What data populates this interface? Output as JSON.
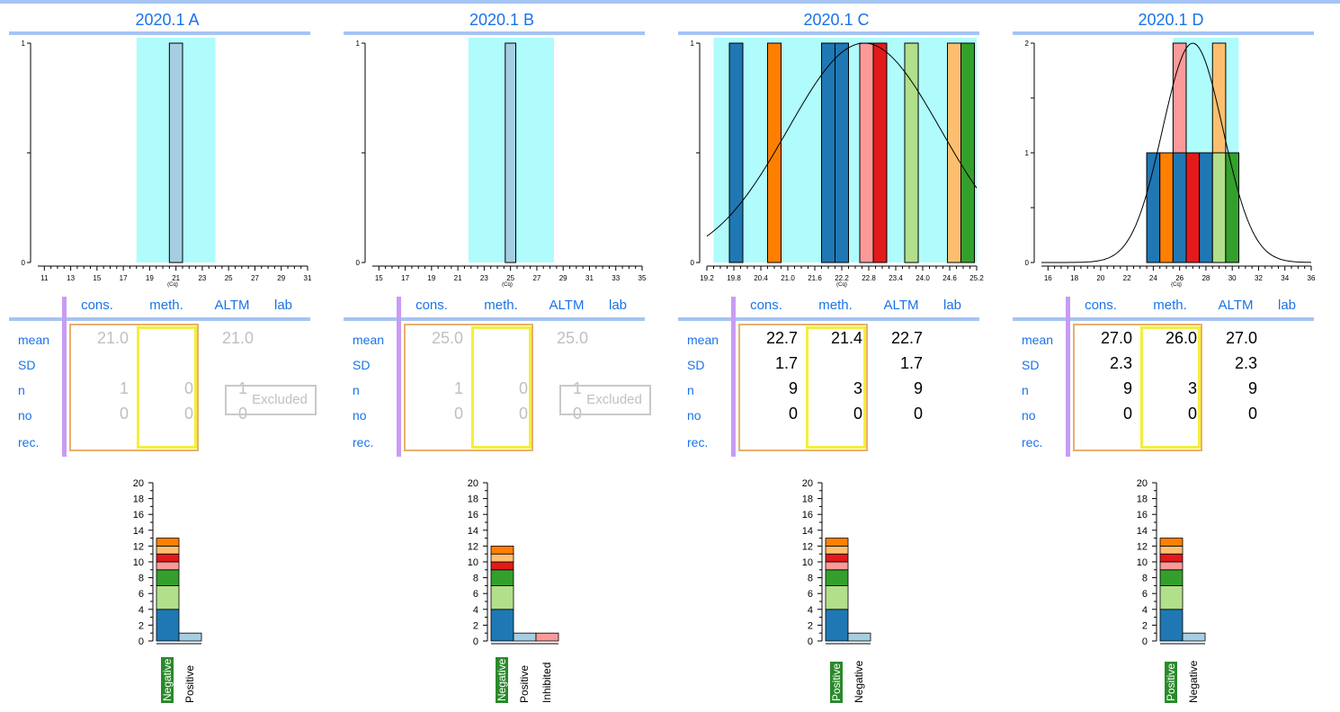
{
  "colors": {
    "accent": "#1a73e8",
    "band": "#b0fbfb",
    "title_line": "#a6c4f3",
    "separator": "#c79cf5",
    "cons_box": "#e8b070",
    "meth_box": "#f4ee3a",
    "highlight_label": "#2a8a2a"
  },
  "table_labels": {
    "columns": [
      "cons.",
      "meth.",
      "ALTM",
      "lab"
    ],
    "rows": [
      "mean",
      "SD",
      "n",
      "no",
      "rec."
    ],
    "excluded": "Excluded"
  },
  "panels": [
    {
      "title": "2020.1 A",
      "stats_style": "grey",
      "stats": {
        "mean": [
          "21.0",
          "",
          "21.0",
          ""
        ],
        "sd": [
          "",
          "",
          "",
          ""
        ],
        "n": [
          "1",
          "0",
          "1",
          ""
        ],
        "no": [
          "0",
          "0",
          "0",
          ""
        ]
      },
      "excluded": true
    },
    {
      "title": "2020.1 B",
      "stats_style": "grey",
      "stats": {
        "mean": [
          "25.0",
          "",
          "25.0",
          ""
        ],
        "sd": [
          "",
          "",
          "",
          ""
        ],
        "n": [
          "1",
          "0",
          "1",
          ""
        ],
        "no": [
          "0",
          "0",
          "0",
          ""
        ]
      },
      "excluded": true
    },
    {
      "title": "2020.1 C",
      "stats_style": "black",
      "stats": {
        "mean": [
          "22.7",
          "21.4",
          "22.7",
          ""
        ],
        "sd": [
          "1.7",
          "",
          "1.7",
          ""
        ],
        "n": [
          "9",
          "3",
          "9",
          ""
        ],
        "no": [
          "0",
          "0",
          "0",
          ""
        ]
      },
      "excluded": false
    },
    {
      "title": "2020.1 D",
      "stats_style": "black",
      "stats": {
        "mean": [
          "27.0",
          "26.0",
          "27.0",
          ""
        ],
        "sd": [
          "2.3",
          "",
          "2.3",
          ""
        ],
        "n": [
          "9",
          "3",
          "9",
          ""
        ],
        "no": [
          "0",
          "0",
          "0",
          ""
        ]
      },
      "excluded": false
    }
  ],
  "chart_data": [
    {
      "type": "bar",
      "panel": "2020.1 A",
      "xlabel": "(Cq)",
      "x_ticks": [
        11,
        13,
        15,
        17,
        19,
        21,
        23,
        25,
        27,
        29,
        31
      ],
      "xlim": [
        10.5,
        31
      ],
      "ylim": [
        0,
        1
      ],
      "y_ticks": [
        0,
        1
      ],
      "shaded_band": [
        18,
        24
      ],
      "bars": [
        {
          "x0": 20.5,
          "x1": 21.5,
          "y0": 0,
          "y1": 1,
          "color": "#a6cee3"
        }
      ],
      "normal_curve": null
    },
    {
      "type": "bar",
      "panel": "2020.1 B",
      "xlabel": "(Cq)",
      "x_ticks": [
        15,
        17,
        19,
        21,
        23,
        25,
        27,
        29,
        31,
        33,
        35
      ],
      "xlim": [
        14.5,
        35
      ],
      "ylim": [
        0,
        1
      ],
      "y_ticks": [
        0,
        1
      ],
      "shaded_band": [
        21.8,
        28.3
      ],
      "bars": [
        {
          "x0": 24.6,
          "x1": 25.4,
          "y0": 0,
          "y1": 1,
          "color": "#a6cee3"
        }
      ],
      "normal_curve": null
    },
    {
      "type": "bar",
      "panel": "2020.1 C",
      "xlabel": "(Cq)",
      "x_ticks": [
        19.2,
        19.8,
        20.4,
        21.0,
        21.6,
        22.2,
        22.8,
        23.4,
        24.0,
        24.6,
        25.2
      ],
      "xlim": [
        19.2,
        25.2
      ],
      "ylim": [
        0,
        1
      ],
      "y_ticks": [
        0,
        1
      ],
      "shaded_band": [
        19.35,
        25.2
      ],
      "bars": [
        {
          "x0": 19.7,
          "x1": 20.0,
          "y0": 0,
          "y1": 1,
          "color": "#1f78b4"
        },
        {
          "x0": 20.55,
          "x1": 20.85,
          "y0": 0,
          "y1": 1,
          "color": "#ff7f00"
        },
        {
          "x0": 21.75,
          "x1": 22.05,
          "y0": 0,
          "y1": 1,
          "color": "#1f78b4"
        },
        {
          "x0": 22.05,
          "x1": 22.35,
          "y0": 0,
          "y1": 1,
          "color": "#1f78b4"
        },
        {
          "x0": 22.6,
          "x1": 22.9,
          "y0": 0,
          "y1": 1,
          "color": "#fb9a99"
        },
        {
          "x0": 22.9,
          "x1": 23.2,
          "y0": 0,
          "y1": 1,
          "color": "#e31a1c"
        },
        {
          "x0": 23.6,
          "x1": 23.9,
          "y0": 0,
          "y1": 1,
          "color": "#b2df8a"
        },
        {
          "x0": 24.55,
          "x1": 24.85,
          "y0": 0,
          "y1": 1,
          "color": "#fdbf6f"
        },
        {
          "x0": 24.85,
          "x1": 25.15,
          "y0": 0,
          "y1": 1,
          "color": "#33a02c"
        }
      ],
      "normal_curve": {
        "mean": 22.7,
        "sd": 1.7,
        "peak": 1
      }
    },
    {
      "type": "bar",
      "panel": "2020.1 D",
      "xlabel": "(Cq)",
      "x_ticks": [
        16,
        18,
        20,
        22,
        24,
        26,
        28,
        30,
        32,
        34,
        36
      ],
      "xlim": [
        15.5,
        36
      ],
      "ylim": [
        0,
        2
      ],
      "y_ticks": [
        0,
        1,
        2
      ],
      "shaded_band": [
        25.5,
        30.5
      ],
      "bars": [
        {
          "x0": 23.5,
          "x1": 24.5,
          "y0": 0,
          "y1": 1,
          "color": "#1f78b4"
        },
        {
          "x0": 24.5,
          "x1": 25.5,
          "y0": 0,
          "y1": 1,
          "color": "#ff7f00"
        },
        {
          "x0": 25.5,
          "x1": 26.5,
          "y0": 0,
          "y1": 1,
          "color": "#1f78b4"
        },
        {
          "x0": 25.5,
          "x1": 26.5,
          "y0": 1,
          "y1": 2,
          "color": "#fb9a99"
        },
        {
          "x0": 26.5,
          "x1": 27.5,
          "y0": 0,
          "y1": 1,
          "color": "#e31a1c"
        },
        {
          "x0": 27.5,
          "x1": 28.5,
          "y0": 0,
          "y1": 1,
          "color": "#1f78b4"
        },
        {
          "x0": 28.5,
          "x1": 29.5,
          "y0": 0,
          "y1": 1,
          "color": "#b2df8a"
        },
        {
          "x0": 28.5,
          "x1": 29.5,
          "y0": 1,
          "y1": 2,
          "color": "#fdbf6f"
        },
        {
          "x0": 29.5,
          "x1": 30.5,
          "y0": 0,
          "y1": 1,
          "color": "#33a02c"
        }
      ],
      "normal_curve": {
        "mean": 27.0,
        "sd": 2.3,
        "peak": 2
      }
    },
    {
      "type": "bar",
      "panel": "2020.1 A",
      "stacked": true,
      "ylim": [
        0,
        21
      ],
      "y_ticks": [
        0,
        2,
        4,
        6,
        8,
        10,
        12,
        14,
        16,
        18,
        20
      ],
      "categories": [
        "Negative",
        "Positive"
      ],
      "highlight_category": "Negative",
      "stacks": [
        [
          {
            "value": 4,
            "color": "#1f78b4"
          },
          {
            "value": 3,
            "color": "#b2df8a"
          },
          {
            "value": 2,
            "color": "#33a02c"
          },
          {
            "value": 1,
            "color": "#fb9a99"
          },
          {
            "value": 1,
            "color": "#e31a1c"
          },
          {
            "value": 1,
            "color": "#fdbf6f"
          },
          {
            "value": 1,
            "color": "#ff7f00"
          }
        ],
        [
          {
            "value": 1,
            "color": "#a6cee3"
          }
        ]
      ]
    },
    {
      "type": "bar",
      "panel": "2020.1 B",
      "stacked": true,
      "ylim": [
        0,
        21
      ],
      "y_ticks": [
        0,
        2,
        4,
        6,
        8,
        10,
        12,
        14,
        16,
        18,
        20
      ],
      "categories": [
        "Negative",
        "Positive",
        "Inhibited"
      ],
      "highlight_category": "Negative",
      "stacks": [
        [
          {
            "value": 4,
            "color": "#1f78b4"
          },
          {
            "value": 3,
            "color": "#b2df8a"
          },
          {
            "value": 2,
            "color": "#33a02c"
          },
          {
            "value": 1,
            "color": "#e31a1c"
          },
          {
            "value": 1,
            "color": "#fdbf6f"
          },
          {
            "value": 1,
            "color": "#ff7f00"
          }
        ],
        [
          {
            "value": 1,
            "color": "#a6cee3"
          }
        ],
        [
          {
            "value": 1,
            "color": "#fb9a99"
          }
        ]
      ]
    },
    {
      "type": "bar",
      "panel": "2020.1 C",
      "stacked": true,
      "ylim": [
        0,
        21
      ],
      "y_ticks": [
        0,
        2,
        4,
        6,
        8,
        10,
        12,
        14,
        16,
        18,
        20
      ],
      "categories": [
        "Positive",
        "Negative"
      ],
      "highlight_category": "Positive",
      "stacks": [
        [
          {
            "value": 4,
            "color": "#1f78b4"
          },
          {
            "value": 3,
            "color": "#b2df8a"
          },
          {
            "value": 2,
            "color": "#33a02c"
          },
          {
            "value": 1,
            "color": "#fb9a99"
          },
          {
            "value": 1,
            "color": "#e31a1c"
          },
          {
            "value": 1,
            "color": "#fdbf6f"
          },
          {
            "value": 1,
            "color": "#ff7f00"
          }
        ],
        [
          {
            "value": 1,
            "color": "#a6cee3"
          }
        ]
      ]
    },
    {
      "type": "bar",
      "panel": "2020.1 D",
      "stacked": true,
      "ylim": [
        0,
        21
      ],
      "y_ticks": [
        0,
        2,
        4,
        6,
        8,
        10,
        12,
        14,
        16,
        18,
        20
      ],
      "categories": [
        "Positive",
        "Negative"
      ],
      "highlight_category": "Positive",
      "stacks": [
        [
          {
            "value": 4,
            "color": "#1f78b4"
          },
          {
            "value": 3,
            "color": "#b2df8a"
          },
          {
            "value": 2,
            "color": "#33a02c"
          },
          {
            "value": 1,
            "color": "#fb9a99"
          },
          {
            "value": 1,
            "color": "#e31a1c"
          },
          {
            "value": 1,
            "color": "#fdbf6f"
          },
          {
            "value": 1,
            "color": "#ff7f00"
          }
        ],
        [
          {
            "value": 1,
            "color": "#a6cee3"
          }
        ]
      ]
    }
  ]
}
